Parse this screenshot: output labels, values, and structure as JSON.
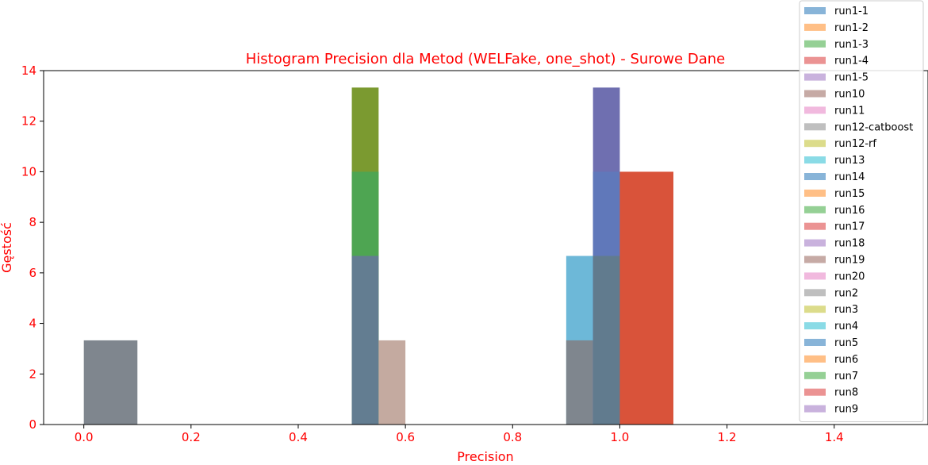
{
  "chart_data": {
    "type": "bar",
    "title": "Histogram Precision dla Metod (WELFake, one_shot) - Surowe Dane",
    "xlabel": "Precision",
    "ylabel": "Gęstość",
    "xlim": [
      -0.075,
      1.575
    ],
    "ylim": [
      0,
      14
    ],
    "x_ticks": [
      "0.0",
      "0.2",
      "0.4",
      "0.6",
      "0.8",
      "1.0",
      "1.2",
      "1.4"
    ],
    "y_ticks": [
      "0",
      "2",
      "4",
      "6",
      "8",
      "10",
      "12",
      "14"
    ],
    "grid": false,
    "legend_position": "top-right",
    "colors": {
      "label": "#ff0000",
      "legend_text": "#000000",
      "background": "#ffffff"
    },
    "visible_bars": [
      {
        "x_start": 0.0,
        "x_end": 0.1,
        "height": 3.33,
        "color": "#7f868e"
      },
      {
        "x_start": 0.5,
        "x_end": 0.55,
        "height": 13.33,
        "color": "#7b9a30"
      },
      {
        "x_start": 0.5,
        "x_end": 0.55,
        "height": 10.0,
        "color": "#4ea552"
      },
      {
        "x_start": 0.5,
        "x_end": 0.55,
        "height": 6.67,
        "color": "#637d91"
      },
      {
        "x_start": 0.55,
        "x_end": 0.6,
        "height": 3.33,
        "color": "#c4aaa0"
      },
      {
        "x_start": 0.9,
        "x_end": 0.95,
        "height": 6.67,
        "color": "#6db8d8"
      },
      {
        "x_start": 0.9,
        "x_end": 0.95,
        "height": 3.33,
        "color": "#7f868e"
      },
      {
        "x_start": 0.95,
        "x_end": 1.0,
        "height": 13.33,
        "color": "#6f6fb0"
      },
      {
        "x_start": 0.95,
        "x_end": 1.0,
        "height": 10.0,
        "color": "#6078ba"
      },
      {
        "x_start": 0.95,
        "x_end": 1.0,
        "height": 6.67,
        "color": "#617b8e"
      },
      {
        "x_start": 1.0,
        "x_end": 1.1,
        "height": 10.0,
        "color": "#d9533a"
      }
    ],
    "legend": [
      {
        "name": "run1-1",
        "color": "#88b4d8"
      },
      {
        "name": "run1-2",
        "color": "#ffbf86"
      },
      {
        "name": "run1-3",
        "color": "#95d095"
      },
      {
        "name": "run1-4",
        "color": "#eb9393"
      },
      {
        "name": "run1-5",
        "color": "#c9b2dd"
      },
      {
        "name": "run10",
        "color": "#c6aaa5"
      },
      {
        "name": "run11",
        "color": "#f1b9de"
      },
      {
        "name": "run12-catboost",
        "color": "#bfbfbf"
      },
      {
        "name": "run12-rf",
        "color": "#dcdc8b"
      },
      {
        "name": "run13",
        "color": "#8adbe6"
      },
      {
        "name": "run14",
        "color": "#88b4d8"
      },
      {
        "name": "run15",
        "color": "#ffbf86"
      },
      {
        "name": "run16",
        "color": "#95d095"
      },
      {
        "name": "run17",
        "color": "#eb9393"
      },
      {
        "name": "run18",
        "color": "#c9b2dd"
      },
      {
        "name": "run19",
        "color": "#c6aaa5"
      },
      {
        "name": "run20",
        "color": "#f1b9de"
      },
      {
        "name": "run2",
        "color": "#bfbfbf"
      },
      {
        "name": "run3",
        "color": "#dcdc8b"
      },
      {
        "name": "run4",
        "color": "#8adbe6"
      },
      {
        "name": "run5",
        "color": "#88b4d8"
      },
      {
        "name": "run6",
        "color": "#ffbf86"
      },
      {
        "name": "run7",
        "color": "#95d095"
      },
      {
        "name": "run8",
        "color": "#eb9393"
      },
      {
        "name": "run9",
        "color": "#c9b2dd"
      }
    ]
  }
}
